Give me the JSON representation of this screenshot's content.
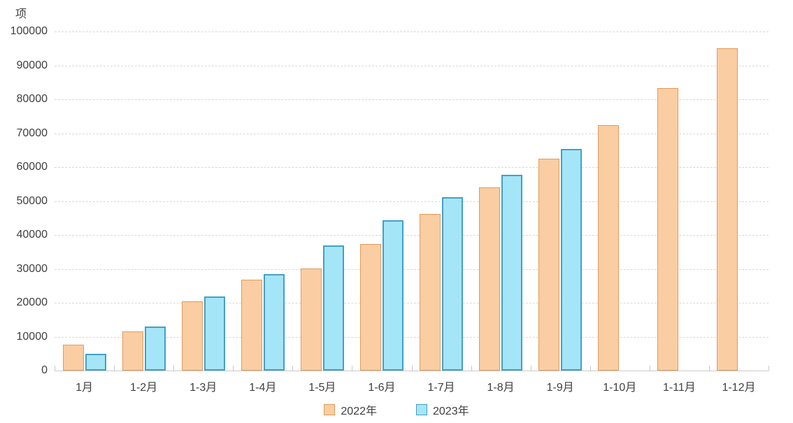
{
  "chart_data": {
    "type": "bar",
    "title": "",
    "unit_label": "项",
    "categories": [
      "1月",
      "1-2月",
      "1-3月",
      "1-4月",
      "1-5月",
      "1-6月",
      "1-7月",
      "1-8月",
      "1-9月",
      "1-10月",
      "1-11月",
      "1-12月"
    ],
    "series": [
      {
        "name": "2022年",
        "color": "#FACDA2",
        "border_color": "#E39B5A",
        "values": [
          7600,
          11500,
          20400,
          26800,
          30000,
          37300,
          46200,
          54000,
          62400,
          72400,
          83200,
          95000
        ]
      },
      {
        "name": "2023年",
        "color": "#A5E5F8",
        "border_color": "#44A0C5",
        "values": [
          4900,
          13000,
          21900,
          28400,
          36900,
          44400,
          51200,
          57800,
          65400
        ]
      }
    ],
    "xlabel": "",
    "ylabel": "项",
    "ylim": [
      0,
      100000
    ],
    "y_tick_interval": 10000,
    "y_tick_labels": [
      "0",
      "10000",
      "20000",
      "30000",
      "40000",
      "50000",
      "60000",
      "70000",
      "80000",
      "90000",
      "100000"
    ],
    "grid": "horizontal-dashed",
    "legend_position": "bottom-center"
  }
}
